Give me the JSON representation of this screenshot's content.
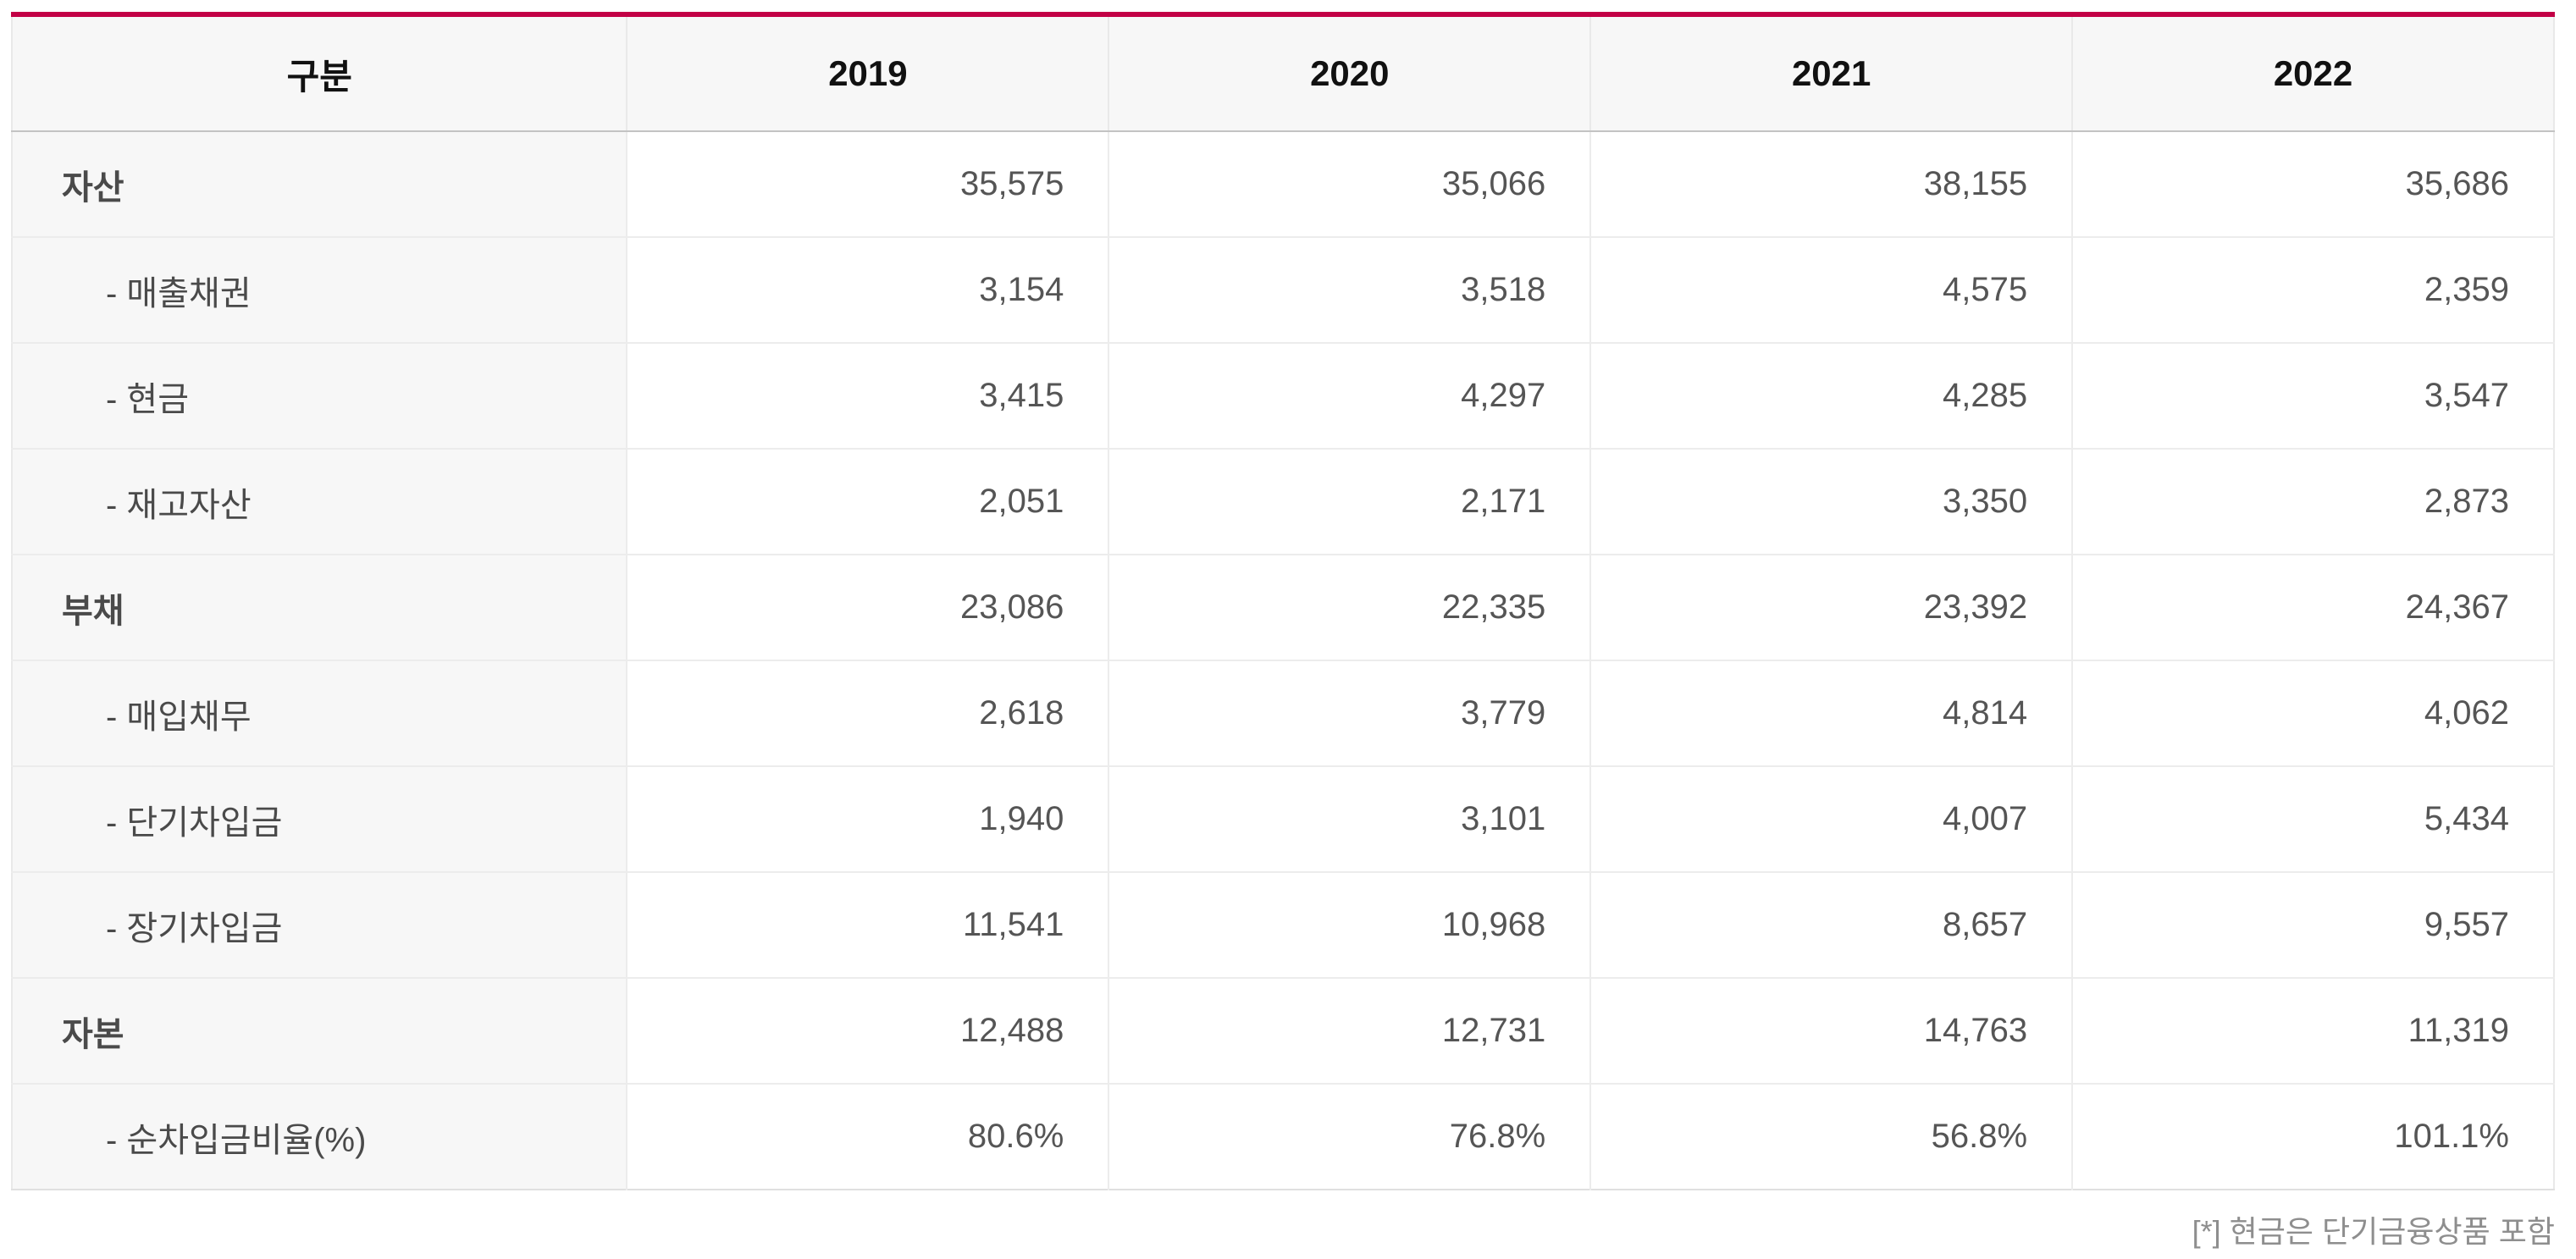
{
  "table": {
    "columns": [
      "구분",
      "2019",
      "2020",
      "2021",
      "2022"
    ],
    "rows": [
      {
        "label": "자산",
        "indent": false,
        "values": [
          "35,575",
          "35,066",
          "38,155",
          "35,686"
        ]
      },
      {
        "label": "- 매출채권",
        "indent": true,
        "values": [
          "3,154",
          "3,518",
          "4,575",
          "2,359"
        ]
      },
      {
        "label": "- 현금",
        "indent": true,
        "values": [
          "3,415",
          "4,297",
          "4,285",
          "3,547"
        ]
      },
      {
        "label": "- 재고자산",
        "indent": true,
        "values": [
          "2,051",
          "2,171",
          "3,350",
          "2,873"
        ]
      },
      {
        "label": "부채",
        "indent": false,
        "values": [
          "23,086",
          "22,335",
          "23,392",
          "24,367"
        ]
      },
      {
        "label": "- 매입채무",
        "indent": true,
        "values": [
          "2,618",
          "3,779",
          "4,814",
          "4,062"
        ]
      },
      {
        "label": "- 단기차입금",
        "indent": true,
        "values": [
          "1,940",
          "3,101",
          "4,007",
          "5,434"
        ]
      },
      {
        "label": "- 장기차입금",
        "indent": true,
        "values": [
          "11,541",
          "10,968",
          "8,657",
          "9,557"
        ]
      },
      {
        "label": "자본",
        "indent": false,
        "values": [
          "12,488",
          "12,731",
          "14,763",
          "11,319"
        ]
      },
      {
        "label": "- 순차입금비율(%)",
        "indent": true,
        "values": [
          "80.6%",
          "76.8%",
          "56.8%",
          "101.1%"
        ]
      }
    ]
  },
  "footnote": "[*] 현금은 단기금융상품 포함",
  "colors": {
    "accent_top_border": "#c20045",
    "header_background": "#f7f7f7",
    "label_column_background": "#f7f7f7",
    "header_divider": "#c3c3c3",
    "grid_line": "#ececec",
    "header_text": "#111111",
    "body_text": "#555555",
    "footnote_text": "#8e8e8e"
  },
  "chart_data": {
    "type": "table",
    "title": "",
    "columns": [
      "구분",
      "2019",
      "2020",
      "2021",
      "2022"
    ],
    "rows": [
      {
        "category": "자산",
        "values": [
          35575,
          35066,
          38155,
          35686
        ]
      },
      {
        "category": "매출채권",
        "values": [
          3154,
          3518,
          4575,
          2359
        ]
      },
      {
        "category": "현금",
        "values": [
          3415,
          4297,
          4285,
          3547
        ]
      },
      {
        "category": "재고자산",
        "values": [
          2051,
          2171,
          3350,
          2873
        ]
      },
      {
        "category": "부채",
        "values": [
          23086,
          22335,
          23392,
          24367
        ]
      },
      {
        "category": "매입채무",
        "values": [
          2618,
          3779,
          4814,
          4062
        ]
      },
      {
        "category": "단기차입금",
        "values": [
          1940,
          3101,
          4007,
          5434
        ]
      },
      {
        "category": "장기차입금",
        "values": [
          11541,
          10968,
          8657,
          9557
        ]
      },
      {
        "category": "자본",
        "values": [
          12488,
          12731,
          14763,
          11319
        ]
      },
      {
        "category": "순차입금비율(%)",
        "values": [
          "80.6%",
          "76.8%",
          "56.8%",
          "101.1%"
        ]
      }
    ],
    "footnote": "[*] 현금은 단기금융상품 포함"
  }
}
